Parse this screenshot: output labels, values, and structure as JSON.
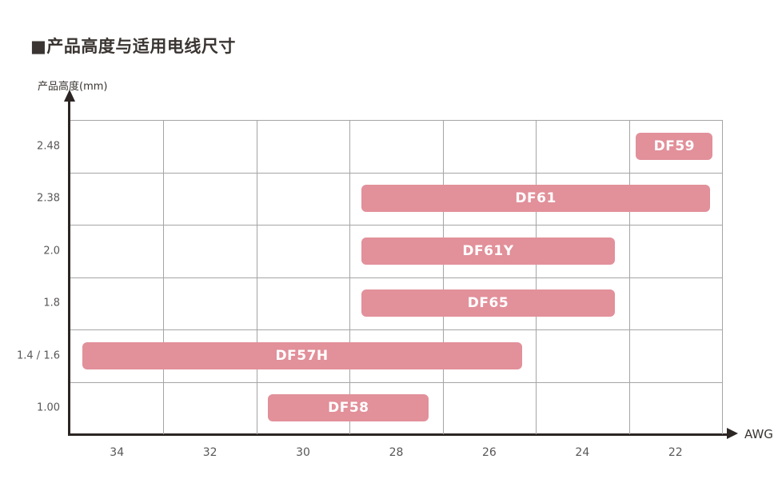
{
  "title": "■产品高度与适用电线尺寸",
  "chart_data": {
    "type": "bar",
    "variant": "horizontal-range-bars",
    "title": "产品高度与适用电线尺寸",
    "ylabel": "产品高度(mm)",
    "xlabel": "AWG",
    "grid": true,
    "x_ticks": [
      "34",
      "32",
      "30",
      "28",
      "26",
      "24",
      "22"
    ],
    "x_axis": {
      "left_value": 35,
      "right_value": 21,
      "unit": "AWG"
    },
    "y_ticks": [
      "2.48",
      "2.38",
      "2.0",
      "1.8",
      "1.4 / 1.6",
      "1.00"
    ],
    "bars": [
      {
        "label": "DF59",
        "height_mm": "2.48",
        "row_index": 0,
        "awg_start": 22.85,
        "awg_end": 21.2
      },
      {
        "label": "DF61",
        "height_mm": "2.38",
        "row_index": 1,
        "awg_start": 28.75,
        "awg_end": 21.25
      },
      {
        "label": "DF61Y",
        "height_mm": "2.0",
        "row_index": 2,
        "awg_start": 28.75,
        "awg_end": 23.3
      },
      {
        "label": "DF65",
        "height_mm": "1.8",
        "row_index": 3,
        "awg_start": 28.75,
        "awg_end": 23.3
      },
      {
        "label": "DF57H",
        "height_mm": "1.4 / 1.6",
        "row_index": 4,
        "awg_start": 34.75,
        "awg_end": 25.3
      },
      {
        "label": "DF58",
        "height_mm": "1.00",
        "row_index": 5,
        "awg_start": 30.75,
        "awg_end": 27.3
      }
    ],
    "colors": {
      "bar": "#e2909a",
      "bar_text": "#ffffff",
      "grid": "#a5a5a5",
      "axis": "#2b2523",
      "tick_text": "#595757"
    }
  }
}
